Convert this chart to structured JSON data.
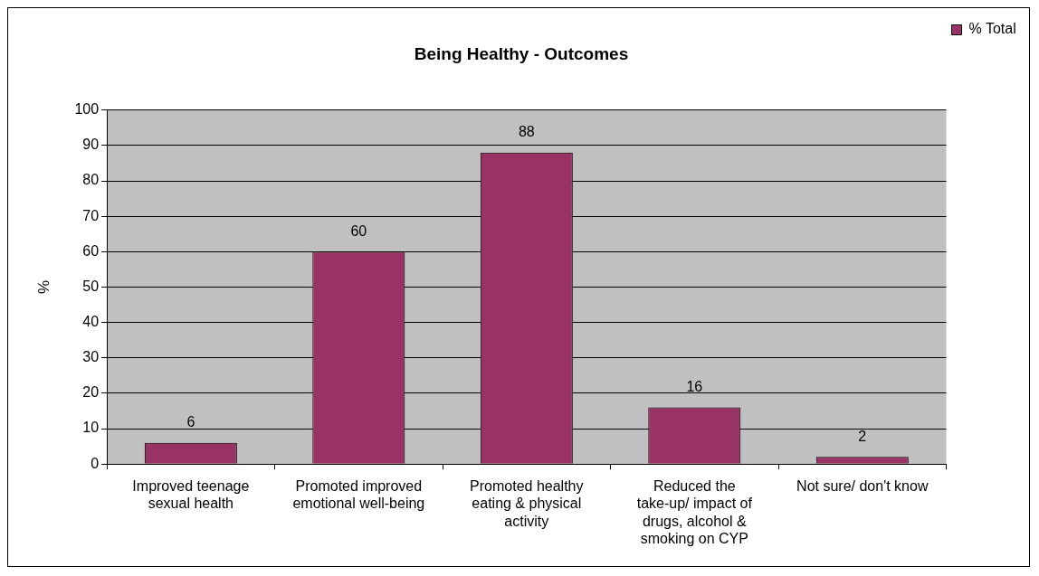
{
  "chart_data": {
    "type": "bar",
    "title": "Being Healthy - Outcomes",
    "ylabel": "%",
    "categories": [
      "Improved teenage sexual health",
      "Promoted improved emotional well-being",
      "Promoted healthy eating & physical activity",
      "Reduced the take-up/ impact of drugs, alcohol & smoking on CYP",
      "Not sure/ don't know"
    ],
    "series": [
      {
        "name": "% Total",
        "color": "#993366",
        "values": [
          6,
          60,
          88,
          16,
          2
        ]
      }
    ],
    "ylim": [
      0,
      100
    ],
    "yticks": [
      0,
      10,
      20,
      30,
      40,
      50,
      60,
      70,
      80,
      90,
      100
    ],
    "grid": "y",
    "legend": "top right",
    "data_labels": true
  }
}
